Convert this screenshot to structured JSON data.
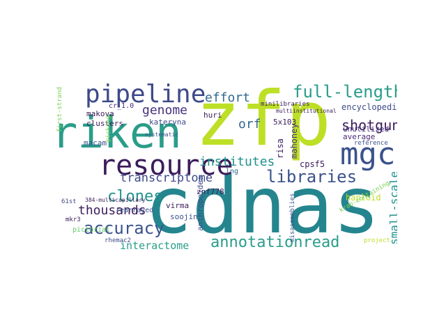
{
  "palette": {
    "yellow_green": "#bddf26",
    "teal": "#25858e",
    "sea_green": "#2a9d8a",
    "deep_purple": "#3b1c5a",
    "indigo": "#46327e",
    "blue_purple": "#3e4a89",
    "slate_blue": "#3b528b",
    "dark_teal": "#21918c",
    "green": "#5ec962",
    "light_green": "#7ad151",
    "purple": "#482878",
    "mid_blue": "#31688e"
  },
  "words": [
    {
      "text": "zfp",
      "color": "#bddf26",
      "vertical": false
    },
    {
      "text": "cdnas",
      "color": "#25858e",
      "vertical": false
    },
    {
      "text": "riken",
      "color": "#2a9d8a",
      "vertical": false
    },
    {
      "text": "resource",
      "color": "#3b1c5a",
      "vertical": false
    },
    {
      "text": "pipeline",
      "color": "#3e4a89",
      "vertical": false
    },
    {
      "text": "mgc",
      "color": "#3b528b",
      "vertical": false
    },
    {
      "text": "full-length",
      "color": "#2a9d8a",
      "vertical": false
    },
    {
      "text": "libraries",
      "color": "#3b528b",
      "vertical": false
    },
    {
      "text": "accuracy",
      "color": "#3b528b",
      "vertical": false
    },
    {
      "text": "annotationread",
      "color": "#2a9d8a",
      "vertical": false
    },
    {
      "text": "clones",
      "color": "#21918c",
      "vertical": false
    },
    {
      "text": "genome",
      "color": "#46327e",
      "vertical": false
    },
    {
      "text": "effort",
      "color": "#31688e",
      "vertical": false
    },
    {
      "text": "institutes",
      "color": "#21918c",
      "vertical": false
    },
    {
      "text": "transcriptome",
      "color": "#3e4a89",
      "vertical": false
    },
    {
      "text": "thousands",
      "color": "#3b1c5a",
      "vertical": false
    },
    {
      "text": "shotgun",
      "color": "#3b1c5a",
      "vertical": false
    },
    {
      "text": "interactome",
      "color": "#2a9d8a",
      "vertical": false
    },
    {
      "text": "small-scale",
      "color": "#21918c",
      "vertical": true
    },
    {
      "text": "orf",
      "color": "#31688e",
      "vertical": false
    },
    {
      "text": "encyclopedia",
      "color": "#3e4a89",
      "vertical": false
    },
    {
      "text": "unutilized",
      "color": "#46327e",
      "vertical": false
    },
    {
      "text": "average",
      "color": "#482878",
      "vertical": false
    },
    {
      "text": "reference",
      "color": "#3b528b",
      "vertical": false
    },
    {
      "text": "haploid",
      "color": "#bddf26",
      "vertical": false
    },
    {
      "text": "cpsf5",
      "color": "#3b1c5a",
      "vertical": false
    },
    {
      "text": "mahoney",
      "color": "#46327e",
      "vertical": true
    },
    {
      "text": "risa",
      "color": "#3b1c5a",
      "vertical": true
    },
    {
      "text": "5x103",
      "color": "#3b1c5a",
      "vertical": false
    },
    {
      "text": "huri",
      "color": "#3b1c5a",
      "vertical": false
    },
    {
      "text": "lng",
      "color": "#31688e",
      "vertical": false
    },
    {
      "text": "makova",
      "color": "#3b1c5a",
      "vertical": false
    },
    {
      "text": "clusters",
      "color": "#3b1c5a",
      "vertical": false
    },
    {
      "text": "macam",
      "color": "#3b528b",
      "vertical": false
    },
    {
      "text": "kateryna",
      "color": "#3e4a89",
      "vertical": false
    },
    {
      "text": "cr_1.0",
      "color": "#482878",
      "vertical": false
    },
    {
      "text": "minilibraries",
      "color": "#3b1c5a",
      "vertical": false
    },
    {
      "text": "multiinstitutional",
      "color": "#3b1c5a",
      "vertical": false
    },
    {
      "text": "61st",
      "color": "#3e4a89",
      "vertical": false
    },
    {
      "text": "384-multicapillary",
      "color": "#3b1c5a",
      "vertical": false
    },
    {
      "text": "mkr3",
      "color": "#3b1c5a",
      "vertical": false
    },
    {
      "text": "rearrayed",
      "color": "#3b528b",
      "vertical": false
    },
    {
      "text": "soojin",
      "color": "#3b528b",
      "vertical": false
    },
    {
      "text": "virma",
      "color": "#3b1c5a",
      "vertical": false
    },
    {
      "text": "znf778",
      "color": "#3b1c5a",
      "vertical": false
    },
    {
      "text": "anthropoidea",
      "color": "#3e4a89",
      "vertical": true
    },
    {
      "text": "pictorial",
      "color": "#5ec962",
      "vertical": false
    },
    {
      "text": "rhemac2",
      "color": "#3e4a89",
      "vertical": false
    },
    {
      "text": "misassemblies",
      "color": "#3b528b",
      "vertical": true
    },
    {
      "text": "krab-containing",
      "color": "#7ad151",
      "vertical": false
    },
    {
      "text": "project",
      "color": "#bddf26",
      "vertical": false
    },
    {
      "text": "first-strand",
      "color": "#7ad151",
      "vertical": true
    },
    {
      "text": "picking",
      "color": "#7ad151",
      "vertical": true
    },
    {
      "text": "systematic",
      "color": "#3b528b",
      "vertical": false
    }
  ]
}
